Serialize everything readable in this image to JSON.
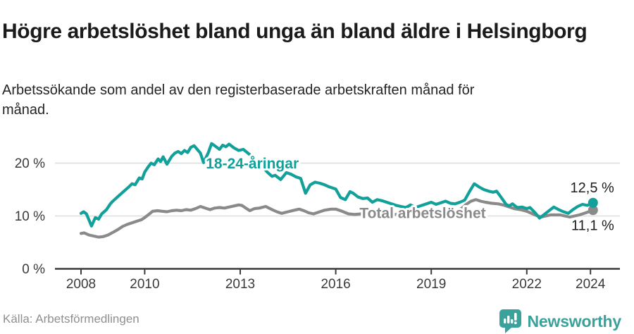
{
  "header": {
    "title": "Högre arbetslöshet bland unga än bland äldre i Helsingborg",
    "subtitle": "Arbetssökande som andel av den registerbaserade arbetskraften månad för månad."
  },
  "footer": {
    "source": "Källa: Arbetsförmedlingen",
    "brand": "Newsworthy",
    "brand_icon": "newsworthy-speech-bubble-bar-chart-icon",
    "brand_color": "#3aa29b"
  },
  "colors": {
    "youth_line": "#12a19a",
    "total_line": "#8a8a8a",
    "gridline": "#dcdcdc",
    "axis": "#3c3c3c",
    "tick_text": "#3a3a3a",
    "end_label_text": "#1c1c1c"
  },
  "chart_data": {
    "type": "line",
    "x_axis": {
      "ticks": [
        2008,
        2010,
        2013,
        2016,
        2019,
        2022,
        2024
      ],
      "tick_labels": [
        "2008",
        "2010",
        "2013",
        "2016",
        "2019",
        "2022",
        "2024"
      ],
      "range": [
        2007.1,
        2024.9
      ]
    },
    "y_axis": {
      "ticks": [
        0,
        10,
        20
      ],
      "tick_labels": [
        "0 %",
        "10 %",
        "20 %"
      ],
      "range": [
        0,
        26.5
      ],
      "unit": "%"
    },
    "grid": "horizontal-only",
    "legend_position": "inline-labels-on-lines",
    "series": [
      {
        "name": "Total arbetslöshet",
        "color": "#8a8a8a",
        "end_label": "11,1 %",
        "end_value": 11.1,
        "label_anchor": {
          "x": 2018.73,
          "y": 10.6
        },
        "points": [
          [
            2008.0,
            6.7
          ],
          [
            2008.1,
            6.8
          ],
          [
            2008.25,
            6.4
          ],
          [
            2008.4,
            6.2
          ],
          [
            2008.55,
            6.0
          ],
          [
            2008.7,
            6.1
          ],
          [
            2008.85,
            6.4
          ],
          [
            2009.0,
            6.9
          ],
          [
            2009.15,
            7.4
          ],
          [
            2009.3,
            8.0
          ],
          [
            2009.45,
            8.4
          ],
          [
            2009.6,
            8.7
          ],
          [
            2009.75,
            9.0
          ],
          [
            2009.9,
            9.3
          ],
          [
            2010.0,
            9.7
          ],
          [
            2010.15,
            10.4
          ],
          [
            2010.25,
            10.9
          ],
          [
            2010.4,
            11.0
          ],
          [
            2010.55,
            10.9
          ],
          [
            2010.7,
            10.8
          ],
          [
            2010.85,
            11.0
          ],
          [
            2011.0,
            11.1
          ],
          [
            2011.15,
            11.0
          ],
          [
            2011.3,
            11.2
          ],
          [
            2011.45,
            11.1
          ],
          [
            2011.6,
            11.4
          ],
          [
            2011.75,
            11.8
          ],
          [
            2011.9,
            11.5
          ],
          [
            2012.05,
            11.2
          ],
          [
            2012.2,
            11.5
          ],
          [
            2012.35,
            11.6
          ],
          [
            2012.5,
            11.5
          ],
          [
            2012.65,
            11.7
          ],
          [
            2012.8,
            11.9
          ],
          [
            2012.95,
            12.1
          ],
          [
            2013.05,
            12.0
          ],
          [
            2013.2,
            11.4
          ],
          [
            2013.3,
            11.0
          ],
          [
            2013.45,
            11.4
          ],
          [
            2013.6,
            11.5
          ],
          [
            2013.8,
            11.8
          ],
          [
            2014.0,
            11.2
          ],
          [
            2014.15,
            10.8
          ],
          [
            2014.3,
            10.5
          ],
          [
            2014.5,
            10.8
          ],
          [
            2014.7,
            11.1
          ],
          [
            2014.85,
            11.3
          ],
          [
            2015.0,
            11.0
          ],
          [
            2015.15,
            10.6
          ],
          [
            2015.3,
            10.4
          ],
          [
            2015.5,
            10.8
          ],
          [
            2015.65,
            11.1
          ],
          [
            2015.85,
            11.3
          ],
          [
            2016.0,
            11.3
          ],
          [
            2016.2,
            10.9
          ],
          [
            2016.4,
            10.4
          ],
          [
            2016.6,
            10.3
          ],
          [
            2016.8,
            10.4
          ],
          [
            2017.0,
            10.5
          ],
          [
            2017.25,
            10.5
          ],
          [
            2017.5,
            10.4
          ],
          [
            2017.75,
            10.3
          ],
          [
            2018.0,
            10.3
          ],
          [
            2018.25,
            10.3
          ],
          [
            2018.5,
            10.4
          ],
          [
            2018.75,
            10.4
          ],
          [
            2019.0,
            10.4
          ],
          [
            2019.25,
            10.5
          ],
          [
            2019.5,
            10.6
          ],
          [
            2019.75,
            10.9
          ],
          [
            2019.95,
            11.4
          ],
          [
            2020.1,
            12.2
          ],
          [
            2020.25,
            12.8
          ],
          [
            2020.4,
            13.1
          ],
          [
            2020.55,
            12.8
          ],
          [
            2020.7,
            12.6
          ],
          [
            2020.9,
            12.4
          ],
          [
            2021.1,
            12.3
          ],
          [
            2021.25,
            12.1
          ],
          [
            2021.4,
            11.8
          ],
          [
            2021.6,
            11.4
          ],
          [
            2021.8,
            11.2
          ],
          [
            2022.0,
            10.9
          ],
          [
            2022.15,
            10.5
          ],
          [
            2022.3,
            10.1
          ],
          [
            2022.45,
            9.8
          ],
          [
            2022.6,
            10.0
          ],
          [
            2022.75,
            10.2
          ],
          [
            2022.9,
            10.2
          ],
          [
            2023.05,
            10.2
          ],
          [
            2023.2,
            10.0
          ],
          [
            2023.35,
            9.8
          ],
          [
            2023.5,
            10.0
          ],
          [
            2023.65,
            10.2
          ],
          [
            2023.8,
            10.5
          ],
          [
            2023.95,
            10.8
          ],
          [
            2024.08,
            11.1
          ]
        ]
      },
      {
        "name": "18-24-åringar",
        "color": "#12a19a",
        "end_label": "12,5 %",
        "end_value": 12.5,
        "label_anchor": {
          "x": 2013.38,
          "y": 20.0
        },
        "points": [
          [
            2008.0,
            10.5
          ],
          [
            2008.08,
            10.8
          ],
          [
            2008.17,
            10.4
          ],
          [
            2008.33,
            8.1
          ],
          [
            2008.45,
            9.7
          ],
          [
            2008.55,
            9.4
          ],
          [
            2008.65,
            10.4
          ],
          [
            2008.8,
            11.2
          ],
          [
            2008.92,
            12.3
          ],
          [
            2009.0,
            12.8
          ],
          [
            2009.2,
            13.9
          ],
          [
            2009.35,
            14.7
          ],
          [
            2009.5,
            15.5
          ],
          [
            2009.6,
            16.1
          ],
          [
            2009.7,
            15.9
          ],
          [
            2009.83,
            17.2
          ],
          [
            2009.92,
            17.0
          ],
          [
            2010.0,
            18.3
          ],
          [
            2010.1,
            19.2
          ],
          [
            2010.2,
            20.0
          ],
          [
            2010.3,
            19.7
          ],
          [
            2010.42,
            20.8
          ],
          [
            2010.5,
            20.3
          ],
          [
            2010.58,
            21.2
          ],
          [
            2010.7,
            19.8
          ],
          [
            2010.85,
            21.3
          ],
          [
            2010.95,
            21.9
          ],
          [
            2011.05,
            22.2
          ],
          [
            2011.15,
            21.8
          ],
          [
            2011.25,
            22.4
          ],
          [
            2011.35,
            22.0
          ],
          [
            2011.45,
            23.0
          ],
          [
            2011.55,
            23.3
          ],
          [
            2011.65,
            22.6
          ],
          [
            2011.75,
            21.9
          ],
          [
            2011.85,
            20.1
          ],
          [
            2012.0,
            22.0
          ],
          [
            2012.1,
            23.7
          ],
          [
            2012.2,
            23.3
          ],
          [
            2012.35,
            22.6
          ],
          [
            2012.45,
            23.4
          ],
          [
            2012.55,
            23.1
          ],
          [
            2012.65,
            23.6
          ],
          [
            2012.8,
            22.9
          ],
          [
            2012.95,
            22.4
          ],
          [
            2013.1,
            22.6
          ],
          [
            2013.3,
            21.6
          ],
          [
            2013.5,
            20.4
          ],
          [
            2013.7,
            19.4
          ],
          [
            2013.85,
            18.3
          ],
          [
            2014.0,
            17.5
          ],
          [
            2014.1,
            17.7
          ],
          [
            2014.27,
            16.9
          ],
          [
            2014.45,
            18.2
          ],
          [
            2014.6,
            17.9
          ],
          [
            2014.75,
            17.4
          ],
          [
            2014.9,
            17.1
          ],
          [
            2015.05,
            14.3
          ],
          [
            2015.2,
            15.9
          ],
          [
            2015.35,
            16.4
          ],
          [
            2015.5,
            16.2
          ],
          [
            2015.65,
            15.9
          ],
          [
            2015.8,
            15.5
          ],
          [
            2016.0,
            15.1
          ],
          [
            2016.15,
            13.5
          ],
          [
            2016.3,
            13.1
          ],
          [
            2016.45,
            14.6
          ],
          [
            2016.55,
            14.3
          ],
          [
            2016.7,
            13.6
          ],
          [
            2016.85,
            13.3
          ],
          [
            2017.0,
            13.4
          ],
          [
            2017.15,
            12.6
          ],
          [
            2017.3,
            13.1
          ],
          [
            2017.45,
            12.9
          ],
          [
            2017.6,
            12.6
          ],
          [
            2017.75,
            12.3
          ],
          [
            2017.9,
            12.0
          ],
          [
            2018.05,
            11.8
          ],
          [
            2018.2,
            11.6
          ],
          [
            2018.35,
            12.1
          ],
          [
            2018.5,
            11.6
          ],
          [
            2018.65,
            11.9
          ],
          [
            2018.8,
            12.2
          ],
          [
            2019.0,
            12.6
          ],
          [
            2019.15,
            12.2
          ],
          [
            2019.3,
            12.5
          ],
          [
            2019.45,
            12.8
          ],
          [
            2019.6,
            12.4
          ],
          [
            2019.75,
            12.3
          ],
          [
            2019.9,
            12.6
          ],
          [
            2020.05,
            13.0
          ],
          [
            2020.2,
            14.6
          ],
          [
            2020.35,
            16.1
          ],
          [
            2020.5,
            15.5
          ],
          [
            2020.65,
            15.0
          ],
          [
            2020.8,
            14.7
          ],
          [
            2020.95,
            14.5
          ],
          [
            2021.05,
            14.7
          ],
          [
            2021.2,
            13.5
          ],
          [
            2021.35,
            12.2
          ],
          [
            2021.45,
            11.9
          ],
          [
            2021.55,
            12.3
          ],
          [
            2021.7,
            11.6
          ],
          [
            2021.85,
            11.7
          ],
          [
            2022.0,
            11.4
          ],
          [
            2022.1,
            11.6
          ],
          [
            2022.25,
            10.7
          ],
          [
            2022.4,
            9.6
          ],
          [
            2022.55,
            10.3
          ],
          [
            2022.7,
            11.0
          ],
          [
            2022.85,
            11.7
          ],
          [
            2023.0,
            11.2
          ],
          [
            2023.15,
            10.8
          ],
          [
            2023.3,
            10.5
          ],
          [
            2023.45,
            11.2
          ],
          [
            2023.6,
            11.8
          ],
          [
            2023.75,
            12.2
          ],
          [
            2023.9,
            12.0
          ],
          [
            2024.08,
            12.5
          ]
        ]
      }
    ]
  }
}
